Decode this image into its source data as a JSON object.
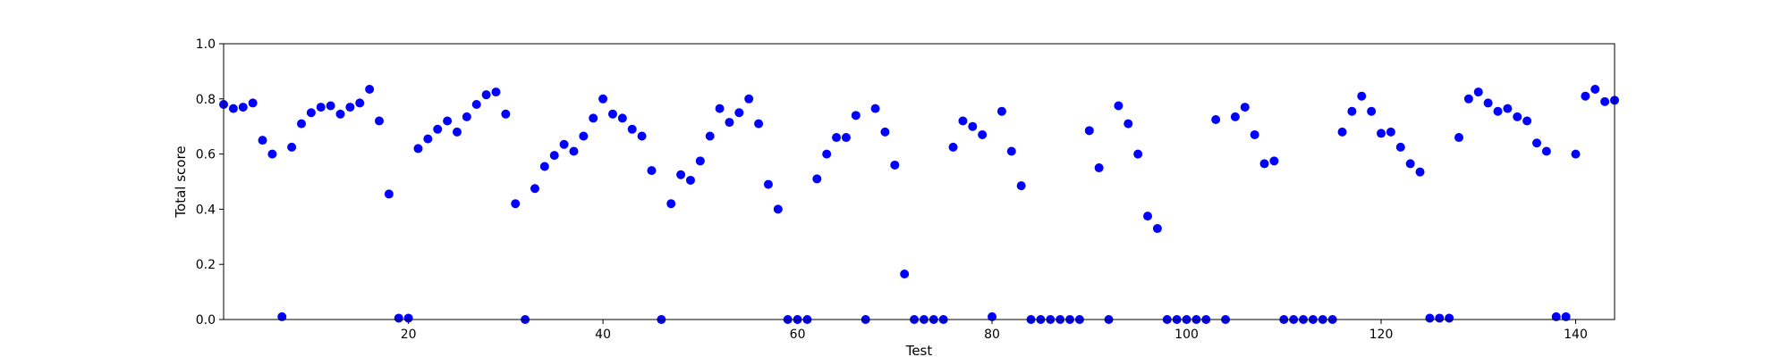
{
  "chart_data": {
    "type": "scatter",
    "title": "",
    "xlabel": "Test",
    "ylabel": "Total score",
    "xlim": [
      1,
      144
    ],
    "ylim": [
      0.0,
      1.0
    ],
    "x_ticks": [
      20,
      40,
      60,
      80,
      100,
      120,
      140
    ],
    "y_ticks": [
      0.0,
      0.2,
      0.4,
      0.6,
      0.8,
      1.0
    ],
    "x_tick_labels": [
      "20",
      "40",
      "60",
      "80",
      "100",
      "120",
      "140"
    ],
    "y_tick_labels": [
      "0.0",
      "0.2",
      "0.4",
      "0.6",
      "0.8",
      "1.0"
    ],
    "grid": false,
    "legend": "none",
    "marker_color": "#0000ff",
    "series": [
      {
        "x": [
          1,
          2,
          3,
          4,
          5,
          6,
          7,
          8,
          9,
          10,
          11,
          12,
          13,
          14,
          15,
          16,
          17,
          18,
          19,
          20,
          21,
          22,
          23,
          24,
          25,
          26,
          27,
          28,
          29,
          30,
          31,
          32,
          33,
          34,
          35,
          36,
          37,
          38,
          39,
          40,
          41,
          42,
          43,
          44,
          45,
          46,
          47,
          48,
          49,
          50,
          51,
          52,
          53,
          54,
          55,
          56,
          57,
          58,
          59,
          60,
          61,
          62,
          63,
          64,
          65,
          66,
          67,
          68,
          69,
          70,
          71,
          72,
          73,
          74,
          75,
          76,
          77,
          78,
          79,
          80,
          81,
          82,
          83,
          84,
          85,
          86,
          87,
          88,
          89,
          90,
          91,
          92,
          93,
          94,
          95,
          96,
          97,
          98,
          99,
          100,
          101,
          102,
          103,
          104,
          105,
          106,
          107,
          108,
          109,
          110,
          111,
          112,
          113,
          114,
          115,
          116,
          117,
          118,
          119,
          120,
          121,
          122,
          123,
          124,
          125,
          126,
          127,
          128,
          129,
          130,
          131,
          132,
          133,
          134,
          135,
          136,
          137,
          138,
          139,
          140,
          141,
          142,
          143,
          144
        ],
        "y": [
          0.78,
          0.765,
          0.77,
          0.785,
          0.65,
          0.6,
          0.01,
          0.625,
          0.71,
          0.75,
          0.77,
          0.775,
          0.745,
          0.77,
          0.785,
          0.835,
          0.72,
          0.455,
          0.005,
          0.005,
          0.62,
          0.655,
          0.69,
          0.72,
          0.68,
          0.735,
          0.78,
          0.815,
          0.825,
          0.745,
          0.42,
          0.0,
          0.475,
          0.555,
          0.595,
          0.635,
          0.61,
          0.665,
          0.73,
          0.8,
          0.745,
          0.73,
          0.69,
          0.665,
          0.54,
          0.0,
          0.42,
          0.525,
          0.505,
          0.575,
          0.665,
          0.765,
          0.715,
          0.75,
          0.8,
          0.71,
          0.49,
          0.4,
          0.0,
          0.0,
          0.0,
          0.51,
          0.6,
          0.66,
          0.66,
          0.74,
          0.0,
          0.765,
          0.68,
          0.56,
          0.165,
          0.0,
          0.0,
          0.0,
          0.0,
          0.625,
          0.72,
          0.7,
          0.67,
          0.01,
          0.755,
          0.61,
          0.485,
          0.0,
          0.0,
          0.0,
          0.0,
          0.0,
          0.0,
          0.685,
          0.55,
          0.0,
          0.775,
          0.71,
          0.6,
          0.375,
          0.33,
          0.0,
          0.0,
          0.0,
          0.0,
          0.0,
          0.725,
          0.0,
          0.735,
          0.77,
          0.67,
          0.565,
          0.575,
          0.0,
          0.0,
          0.0,
          0.0,
          0.0,
          0.0,
          0.68,
          0.755,
          0.81,
          0.755,
          0.675,
          0.68,
          0.625,
          0.565,
          0.535,
          0.005,
          0.005,
          0.005,
          0.66,
          0.8,
          0.825,
          0.785,
          0.755,
          0.765,
          0.735,
          0.72,
          0.64,
          0.61,
          0.01,
          0.01,
          0.6,
          0.81,
          0.835,
          0.79,
          0.795
        ]
      }
    ]
  }
}
